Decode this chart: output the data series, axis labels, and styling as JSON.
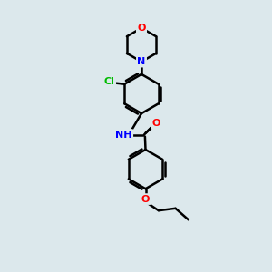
{
  "background_color": "#dce8ec",
  "bond_color": "#000000",
  "bond_width": 1.8,
  "atom_colors": {
    "O": "#ff0000",
    "N": "#0000ff",
    "Cl": "#00bb00",
    "C": "#000000",
    "H": "#000000"
  },
  "figsize": [
    3.0,
    3.0
  ],
  "dpi": 100
}
